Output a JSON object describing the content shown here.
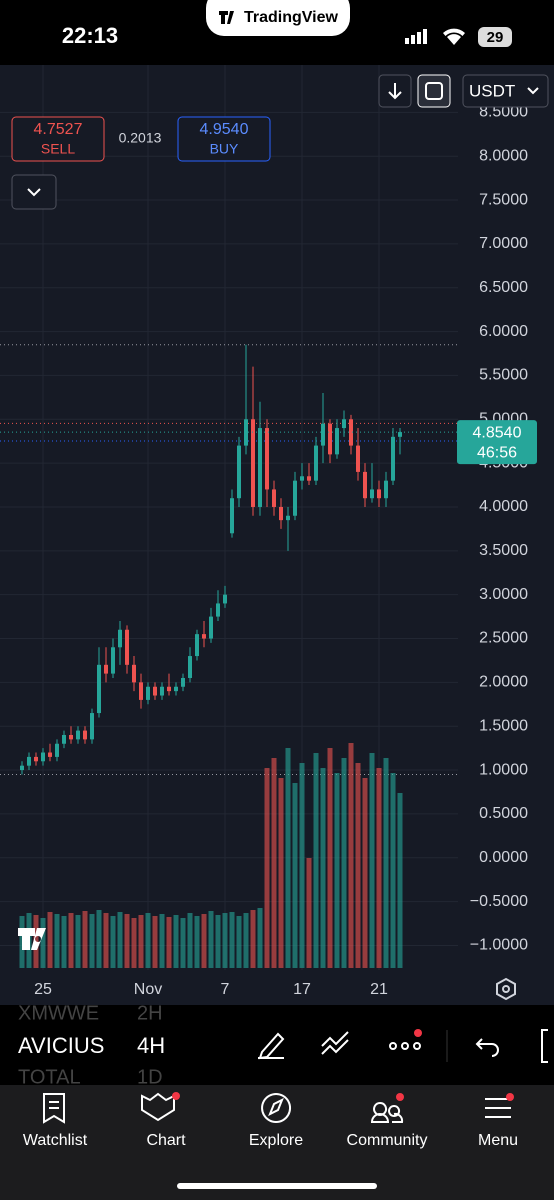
{
  "status_bar": {
    "time": "22:13",
    "app": "TradingView",
    "battery": "29"
  },
  "currency": "USDT",
  "trade": {
    "sell": 4.7527,
    "sell_label": "SELL",
    "spread": 0.2013,
    "buy": {
      "value": 4.954,
      "label": "4.9540"
    },
    "buy_label": "BUY"
  },
  "chart_data": {
    "type": "candlestick",
    "categories": [
      null,
      null,
      null,
      "25",
      null,
      null,
      null,
      null,
      null,
      null,
      null,
      null,
      null,
      null,
      null,
      null,
      null,
      null,
      "Nov",
      null,
      null,
      null,
      null,
      null,
      null,
      null,
      null,
      null,
      null,
      "7",
      null,
      null,
      null,
      null,
      null,
      null,
      null,
      null,
      null,
      null,
      "17",
      null,
      null,
      null,
      null,
      null,
      null,
      null,
      null,
      null,
      null,
      "21",
      null,
      null,
      null
    ],
    "open": [
      1.0,
      1.05,
      1.15,
      1.1,
      1.2,
      1.15,
      1.3,
      1.4,
      1.35,
      1.45,
      1.35,
      1.65,
      2.2,
      2.1,
      2.4,
      2.6,
      2.2,
      2.0,
      1.8,
      1.95,
      1.85,
      1.95,
      1.9,
      1.95,
      2.05,
      2.3,
      2.55,
      2.5,
      2.75,
      2.9,
      3.7,
      4.1,
      4.7,
      5.0,
      4.0,
      4.9,
      4.2,
      4.0,
      3.85,
      3.9,
      4.3,
      4.35,
      4.3,
      4.7,
      4.95,
      4.6,
      4.9,
      5.0,
      4.7,
      4.4,
      4.1,
      4.2,
      4.1,
      4.3,
      4.8
    ],
    "high": [
      1.1,
      1.2,
      1.2,
      1.25,
      1.3,
      1.35,
      1.45,
      1.5,
      1.5,
      1.5,
      1.7,
      2.4,
      2.4,
      2.5,
      2.7,
      2.65,
      2.3,
      2.1,
      2.0,
      2.0,
      2.0,
      2.1,
      2.0,
      2.1,
      2.4,
      2.6,
      2.7,
      2.85,
      3.05,
      3.1,
      4.2,
      4.8,
      5.85,
      5.6,
      5.2,
      5.0,
      4.3,
      4.1,
      4.0,
      4.4,
      4.5,
      4.5,
      4.8,
      5.3,
      5.0,
      5.0,
      5.1,
      5.05,
      4.9,
      4.5,
      4.5,
      4.3,
      4.4,
      4.9,
      4.9
    ],
    "low": [
      0.95,
      1.0,
      1.05,
      1.05,
      1.1,
      1.1,
      1.25,
      1.3,
      1.3,
      1.3,
      1.3,
      1.6,
      2.0,
      2.05,
      2.2,
      2.1,
      1.9,
      1.7,
      1.75,
      1.8,
      1.8,
      1.85,
      1.85,
      1.9,
      2.0,
      2.25,
      2.4,
      2.45,
      2.7,
      2.85,
      3.65,
      4.0,
      4.6,
      3.9,
      3.9,
      4.0,
      3.9,
      3.75,
      3.5,
      3.85,
      4.2,
      4.25,
      4.25,
      4.5,
      4.5,
      4.55,
      4.8,
      4.6,
      4.3,
      4.0,
      4.05,
      4.0,
      4.0,
      4.25,
      4.6
    ],
    "close": [
      1.05,
      1.15,
      1.1,
      1.2,
      1.15,
      1.3,
      1.4,
      1.35,
      1.45,
      1.35,
      1.65,
      2.2,
      2.1,
      2.4,
      2.6,
      2.2,
      2.0,
      1.8,
      1.95,
      1.85,
      1.95,
      1.9,
      1.95,
      2.05,
      2.3,
      2.55,
      2.5,
      2.75,
      2.9,
      3.0,
      4.1,
      4.7,
      5.0,
      4.0,
      4.9,
      4.2,
      4.0,
      3.85,
      3.9,
      4.3,
      4.35,
      4.3,
      4.7,
      4.95,
      4.6,
      4.9,
      5.0,
      4.7,
      4.4,
      4.1,
      4.2,
      4.1,
      4.3,
      4.8,
      4.854
    ],
    "volume": [
      52,
      55,
      53,
      50,
      56,
      54,
      52,
      55,
      53,
      57,
      54,
      58,
      55,
      52,
      56,
      54,
      50,
      53,
      55,
      52,
      54,
      51,
      53,
      50,
      55,
      52,
      54,
      57,
      53,
      55,
      56,
      52,
      55,
      58,
      60,
      200,
      210,
      190,
      220,
      185,
      205,
      110,
      215,
      200,
      220,
      195,
      210,
      225,
      205,
      190,
      215,
      200,
      210,
      195,
      175
    ],
    "volume_lim": [
      0,
      230
    ],
    "up_color": "#26a69a",
    "down_color": "#ef5350",
    "ylim": [
      -1.28,
      9.04
    ],
    "yticks": [
      {
        "value": 8.5,
        "label": "8.5000"
      },
      {
        "value": 8,
        "label": "8.0000"
      },
      {
        "value": 7.5,
        "label": "7.5000"
      },
      {
        "value": 7,
        "label": "7.0000"
      },
      {
        "value": 6.5,
        "label": "6.5000"
      },
      {
        "value": 6,
        "label": "6.0000"
      },
      {
        "value": 5.5,
        "label": "5.5000"
      },
      {
        "value": 5,
        "label": "5.0000"
      },
      {
        "value": 4.5,
        "label": "4.5000"
      },
      {
        "value": 4,
        "label": "4.0000"
      },
      {
        "value": 3.5,
        "label": "3.5000"
      },
      {
        "value": 3,
        "label": "3.0000"
      },
      {
        "value": 2.5,
        "label": "2.5000"
      },
      {
        "value": 2,
        "label": "2.0000"
      },
      {
        "value": 1.5,
        "label": "1.5000"
      },
      {
        "value": 1,
        "label": "1.0000"
      },
      {
        "value": 0.5,
        "label": "0.5000"
      },
      {
        "value": 0,
        "label": "0.0000"
      },
      {
        "value": -0.5,
        "label": "−0.5000"
      },
      {
        "value": -1,
        "label": "−1.0000"
      }
    ],
    "grid": true,
    "last_price": {
      "value": 4.854,
      "label": "4.8540"
    },
    "countdown": "46:56"
  },
  "toolbar": {
    "prev_symbol": "XMWWE",
    "prev_interval": "2H",
    "symbol": "AVICIUS",
    "interval": "4H",
    "next_symbol": "TOTAL",
    "next_interval": "1D"
  },
  "nav": [
    "Watchlist",
    "Chart",
    "Explore",
    "Community",
    "Menu"
  ]
}
